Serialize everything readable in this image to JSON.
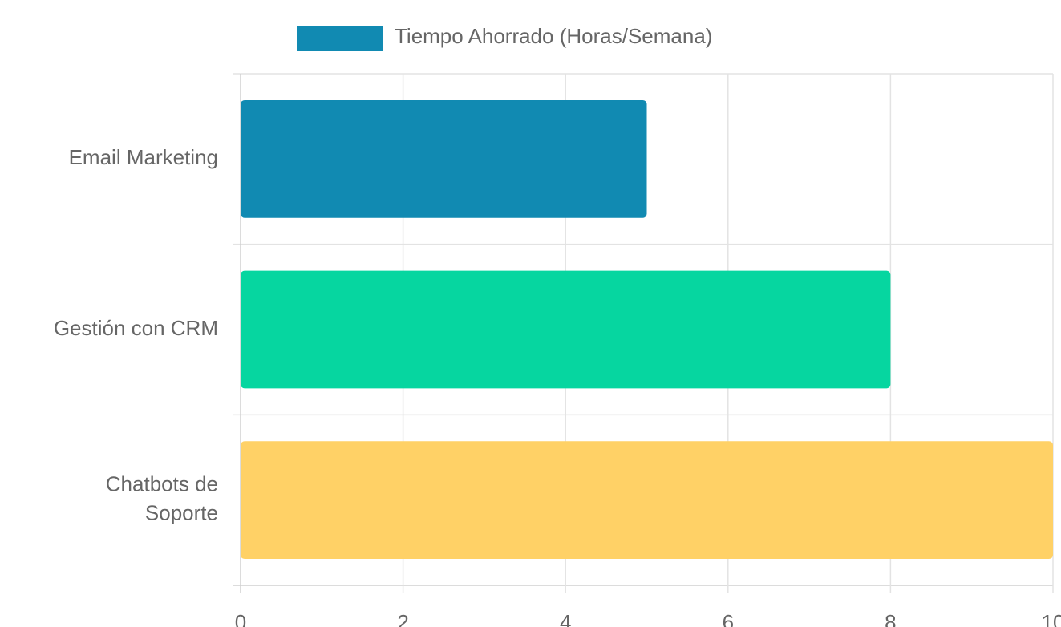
{
  "chart_data": {
    "type": "hbar",
    "categories": [
      "Email Marketing",
      "Gestión con CRM",
      [
        "Chatbots de",
        "Soporte"
      ]
    ],
    "series": [
      {
        "name": "Tiempo Ahorrado (Horas/Semana)",
        "colors": [
          "#118ab2",
          "#06d6a0",
          "#ffd166"
        ],
        "values": [
          5,
          8,
          10
        ]
      }
    ],
    "xlim": [
      0,
      10
    ],
    "xticks": [
      0,
      2,
      4,
      6,
      8,
      10
    ],
    "grid": true,
    "legend": "top"
  }
}
